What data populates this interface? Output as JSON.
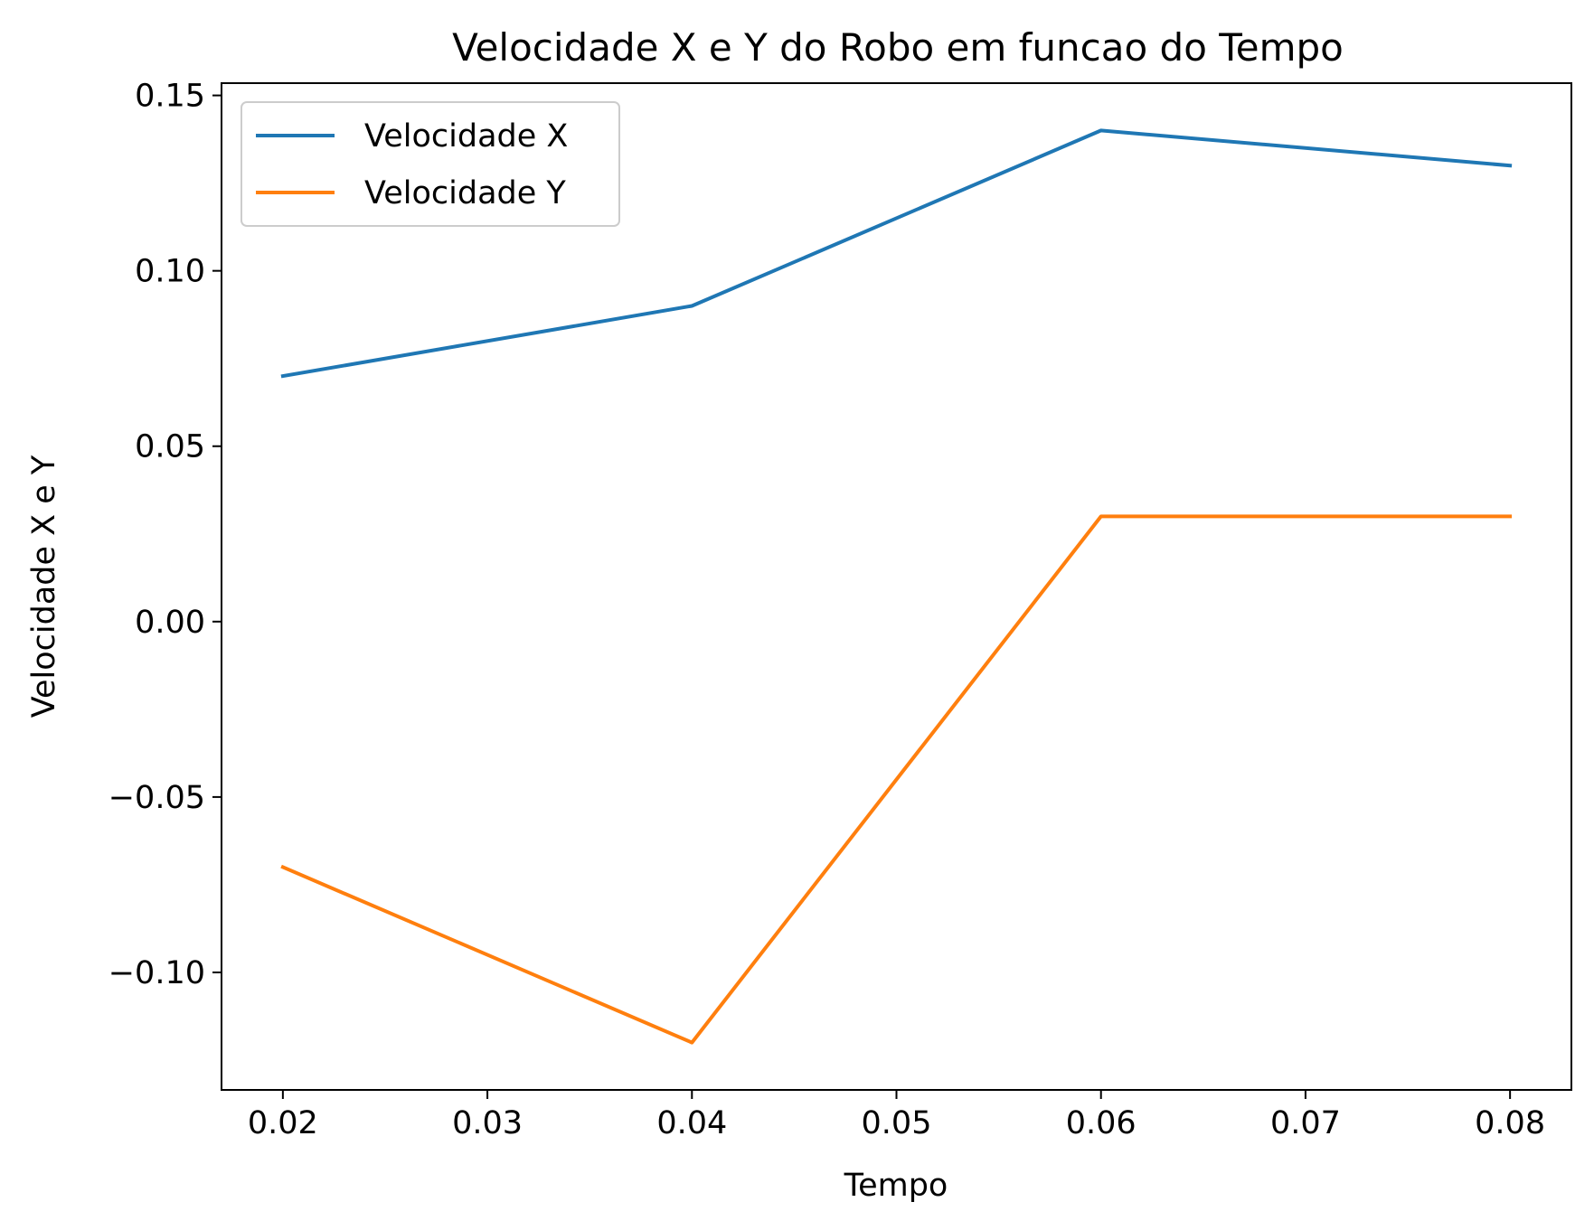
{
  "chart_data": {
    "type": "line",
    "title": "Velocidade X e Y do Robo em funcao do Tempo",
    "xlabel": "Tempo",
    "ylabel": "Velocidade X e Y",
    "x": [
      0.02,
      0.04,
      0.06,
      0.08
    ],
    "series": [
      {
        "name": "Velocidade X",
        "color": "#1f77b4",
        "values": [
          0.07,
          0.09,
          0.14,
          0.13
        ]
      },
      {
        "name": "Velocidade Y",
        "color": "#ff7f0e",
        "values": [
          -0.07,
          -0.12,
          0.03,
          0.03
        ]
      }
    ],
    "xlim": [
      0.017,
      0.083
    ],
    "ylim": [
      -0.1335,
      0.1535
    ],
    "xticks": [
      0.02,
      0.03,
      0.04,
      0.05,
      0.06,
      0.07,
      0.08
    ],
    "xtick_labels": [
      "0.02",
      "0.03",
      "0.04",
      "0.05",
      "0.06",
      "0.07",
      "0.08"
    ],
    "yticks": [
      0.15,
      0.1,
      0.05,
      0.0,
      -0.05,
      -0.1
    ],
    "ytick_labels": [
      "0.15",
      "0.10",
      "0.05",
      "0.00",
      "−0.05",
      "−0.10"
    ],
    "grid": false,
    "legend_position": "upper-left"
  }
}
